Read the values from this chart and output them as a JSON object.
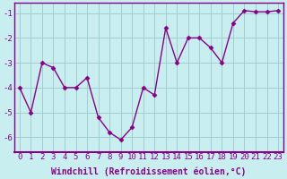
{
  "x": [
    0,
    1,
    2,
    3,
    4,
    5,
    6,
    7,
    8,
    9,
    10,
    11,
    12,
    13,
    14,
    15,
    16,
    17,
    18,
    19,
    20,
    21,
    22,
    23
  ],
  "y": [
    -4.0,
    -5.0,
    -3.0,
    -3.2,
    -4.0,
    -4.0,
    -3.6,
    -5.2,
    -5.8,
    -6.1,
    -5.6,
    -4.0,
    -4.3,
    -1.6,
    -3.0,
    -2.0,
    -2.0,
    -2.4,
    -3.0,
    -1.4,
    -0.9,
    -0.95,
    -0.95,
    -0.9
  ],
  "line_color": "#880088",
  "marker": "D",
  "marker_size": 2.5,
  "bg_color": "#c8eef0",
  "grid_color": "#a0cdd0",
  "spine_color": "#880088",
  "tick_color": "#880088",
  "xlabel": "Windchill (Refroidissement éolien,°C)",
  "xlim": [
    -0.5,
    23.5
  ],
  "ylim": [
    -6.6,
    -0.6
  ],
  "yticks": [
    -6,
    -5,
    -4,
    -3,
    -2,
    -1
  ],
  "xticks": [
    0,
    1,
    2,
    3,
    4,
    5,
    6,
    7,
    8,
    9,
    10,
    11,
    12,
    13,
    14,
    15,
    16,
    17,
    18,
    19,
    20,
    21,
    22,
    23
  ],
  "tick_fontsize": 6.5,
  "xlabel_fontsize": 7,
  "line_width": 1.0
}
